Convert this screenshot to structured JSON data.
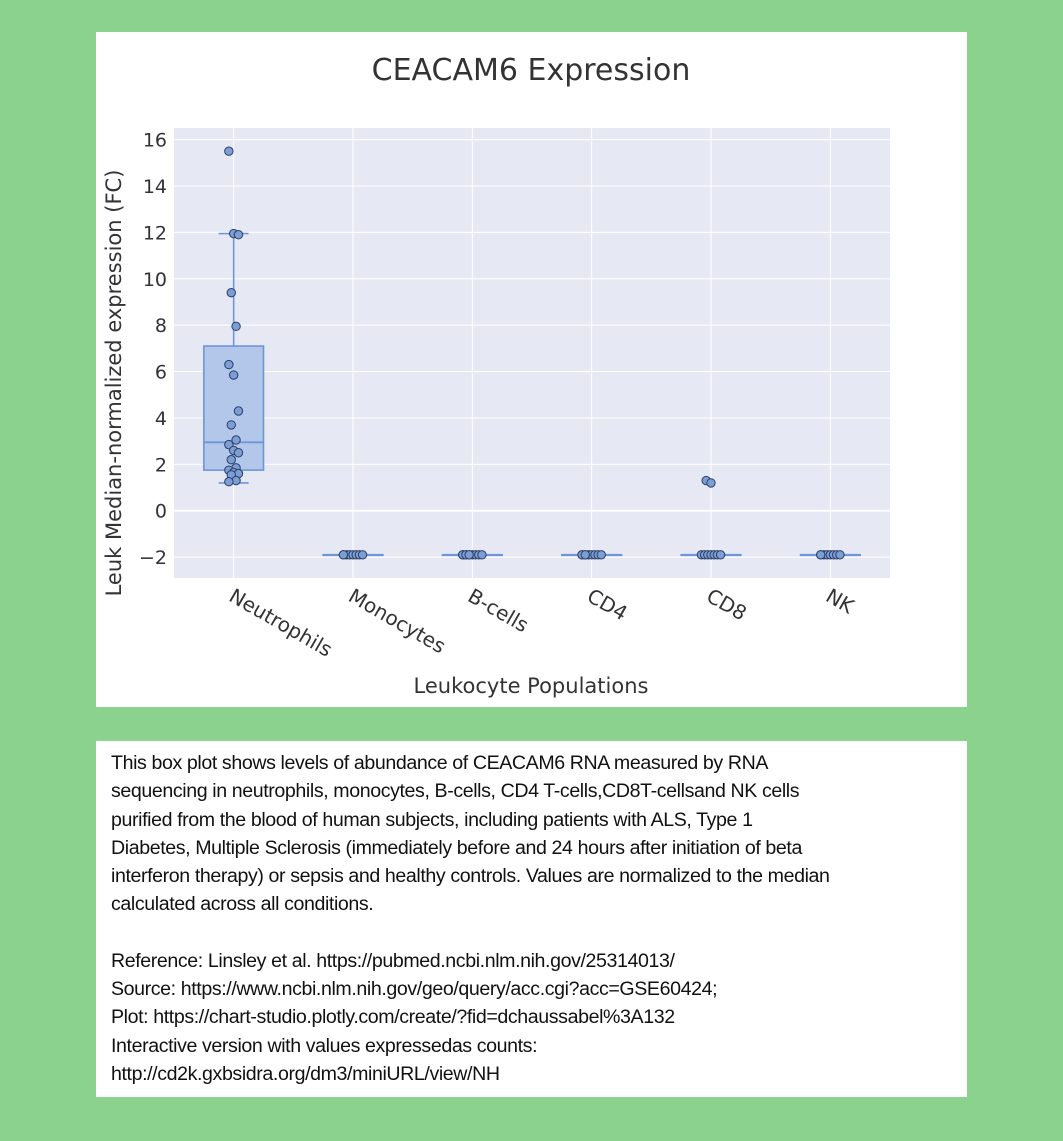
{
  "chart_data": {
    "type": "box",
    "title": "CEACAM6 Expression",
    "xlabel": "Leukocyte Populations",
    "ylabel": "Leuk Median-normalized expression (FC)",
    "ylim": [
      -2.9,
      16.5
    ],
    "yticks": [
      -2,
      0,
      2,
      4,
      6,
      8,
      10,
      12,
      14,
      16
    ],
    "ytick_labels": [
      "−2",
      "0",
      "2",
      "4",
      "6",
      "8",
      "10",
      "12",
      "14",
      "16"
    ],
    "grid": true,
    "categories": [
      "Neutrophils",
      "Monocytes",
      "B-cells",
      "CD4",
      "CD8",
      "NK"
    ],
    "boxes": [
      {
        "category": "Neutrophils",
        "min": 1.2,
        "q1": 1.75,
        "median": 2.95,
        "q3": 7.1,
        "max": 11.95,
        "points": [
          15.5,
          11.95,
          11.9,
          9.4,
          7.95,
          6.3,
          5.85,
          4.3,
          3.7,
          3.05,
          2.85,
          2.6,
          2.5,
          2.2,
          1.85,
          1.75,
          1.65,
          1.6,
          1.55,
          1.3,
          1.25
        ]
      },
      {
        "category": "Monocytes",
        "min": -1.9,
        "q1": -1.9,
        "median": -1.9,
        "q3": -1.9,
        "max": -1.9,
        "points": [
          -1.9,
          -1.9,
          -1.9,
          -1.9,
          -1.9,
          -1.9,
          -1.9,
          -1.9
        ]
      },
      {
        "category": "B-cells",
        "min": -1.9,
        "q1": -1.9,
        "median": -1.9,
        "q3": -1.9,
        "max": -1.9,
        "points": [
          -1.9,
          -1.9,
          -1.9,
          -1.9,
          -1.9,
          -1.9,
          -1.9,
          -1.9,
          -1.9,
          -1.9
        ]
      },
      {
        "category": "CD4",
        "min": -1.9,
        "q1": -1.9,
        "median": -1.9,
        "q3": -1.9,
        "max": -1.9,
        "points": [
          -1.9,
          -1.9,
          -1.9,
          -1.9,
          -1.9,
          -1.9,
          -1.9,
          -1.9,
          -1.9
        ]
      },
      {
        "category": "CD8",
        "min": -1.9,
        "q1": -1.9,
        "median": -1.9,
        "q3": -1.9,
        "max": -1.9,
        "points": [
          1.3,
          1.2,
          -1.9,
          -1.9,
          -1.9,
          -1.9,
          -1.9,
          -1.9,
          -1.9
        ]
      },
      {
        "category": "NK",
        "min": -1.9,
        "q1": -1.9,
        "median": -1.9,
        "q3": -1.9,
        "max": -1.9,
        "points": [
          -1.9,
          -1.9,
          -1.9,
          -1.9,
          -1.9,
          -1.9,
          -1.9,
          -1.9
        ]
      }
    ],
    "colors": {
      "box_fill": "#b3c7ea",
      "box_line": "#6f95d8",
      "point_fill": "#7b9ed6",
      "point_edge": "#2c3e63",
      "plot_bg": "#e6e9f3",
      "grid": "#ffffff"
    }
  },
  "caption": {
    "lines": [
      "This box plot shows levels of abundance of CEACAM6 RNA measured by RNA",
      "sequencing in neutrophils, monocytes, B-cells, CD4 T-cells,CD8T-cellsand NK cells",
      "purified from the blood of human subjects, including patients with ALS, Type 1",
      "Diabetes, Multiple Sclerosis (immediately before and 24 hours after initiation of beta",
      "interferon therapy) or sepsis and healthy controls. Values are normalized to the median",
      "calculated across all conditions."
    ],
    "references": [
      "Reference: Linsley et al. https://pubmed.ncbi.nlm.nih.gov/25314013/",
      "Source: https://www.ncbi.nlm.nih.gov/geo/query/acc.cgi?acc=GSE60424;",
      "Plot: https://chart-studio.plotly.com/create/?fid=dchaussabel%3A132",
      "Interactive version with values expressedas counts:",
      "http://cd2k.gxbsidra.org/dm3/miniURL/view/NH"
    ]
  }
}
